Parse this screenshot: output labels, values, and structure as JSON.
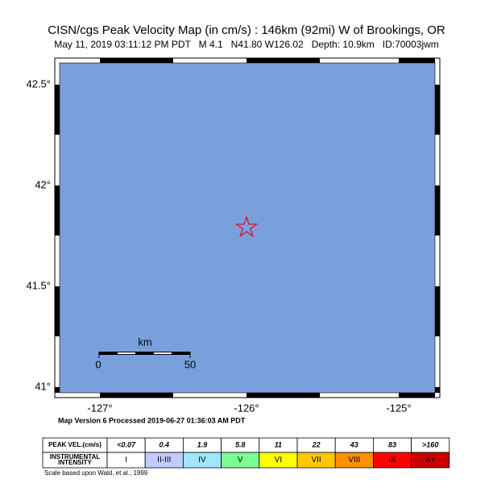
{
  "header": {
    "title": "CISN/cgs Peak Velocity Map (in cm/s) : 146km (92mi) W of Brookings, OR",
    "subtitle": "May 11, 2019 03:11:12 PM PDT   M 4.1   N41.80 W126.02   Depth: 10.9km   ID:70003jwm"
  },
  "map": {
    "lat_labels": [
      "42.5°",
      "42°",
      "41.5°",
      "41°"
    ],
    "lon_labels": [
      "-127°",
      "-126°",
      "-125°"
    ],
    "scale_bar": {
      "unit": "km",
      "start": "0",
      "end": "50"
    }
  },
  "footer": {
    "version": "Map Version 6 Processed 2019-06-27 01:36:03 AM PDT"
  },
  "legend": {
    "rows": [
      {
        "label": [
          "PEAK VEL.(cm/s)"
        ],
        "cells": [
          "<0.07",
          "0.4",
          "1.9",
          "5.8",
          "11",
          "22",
          "43",
          "83",
          ">160"
        ]
      },
      {
        "label": [
          "INSTRUMENTAL",
          "INTENSITY"
        ],
        "cells": [
          "I",
          "II-III",
          "IV",
          "V",
          "VI",
          "VII",
          "VIII",
          "IX",
          "X+"
        ]
      }
    ],
    "note": "Scale based upon Wald, et al.; 1999"
  }
}
